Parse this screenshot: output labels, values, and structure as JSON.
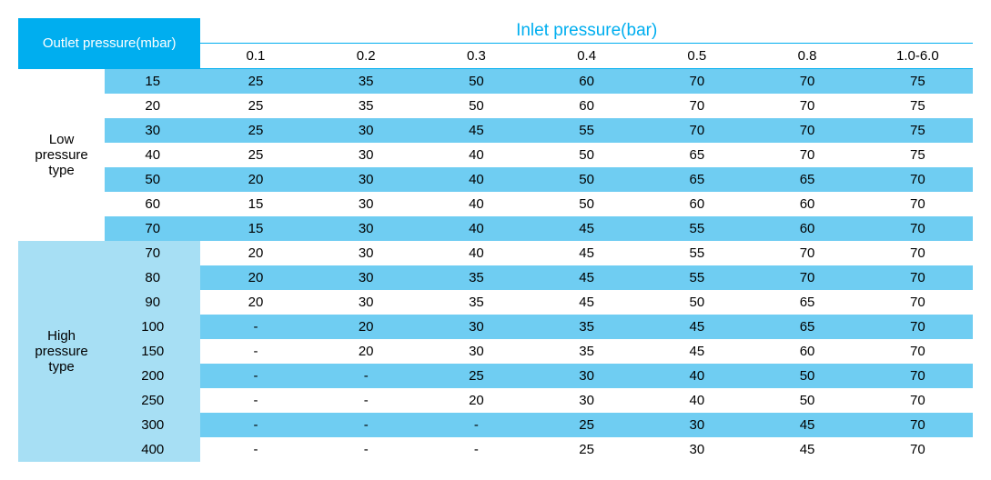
{
  "header": {
    "outlet_label": "Outlet pressure(mbar)",
    "inlet_label": "Inlet pressure(bar)"
  },
  "inlet_cols": [
    "0.1",
    "0.2",
    "0.3",
    "0.4",
    "0.5",
    "0.8",
    "1.0-6.0"
  ],
  "groups": {
    "low": {
      "label_l1": "Low",
      "label_l2": "pressure",
      "label_l3": "type"
    },
    "high": {
      "label_l1": "High",
      "label_l2": "pressure",
      "label_l3": "type"
    }
  },
  "rows": [
    {
      "group": "low",
      "mbar": "15",
      "v": [
        "25",
        "35",
        "50",
        "60",
        "70",
        "70",
        "75"
      ]
    },
    {
      "group": "low",
      "mbar": "20",
      "v": [
        "25",
        "35",
        "50",
        "60",
        "70",
        "70",
        "75"
      ]
    },
    {
      "group": "low",
      "mbar": "30",
      "v": [
        "25",
        "30",
        "45",
        "55",
        "70",
        "70",
        "75"
      ]
    },
    {
      "group": "low",
      "mbar": "40",
      "v": [
        "25",
        "30",
        "40",
        "50",
        "65",
        "70",
        "75"
      ]
    },
    {
      "group": "low",
      "mbar": "50",
      "v": [
        "20",
        "30",
        "40",
        "50",
        "65",
        "65",
        "70"
      ]
    },
    {
      "group": "low",
      "mbar": "60",
      "v": [
        "15",
        "30",
        "40",
        "50",
        "60",
        "60",
        "70"
      ]
    },
    {
      "group": "low",
      "mbar": "70",
      "v": [
        "15",
        "30",
        "40",
        "45",
        "55",
        "60",
        "70"
      ]
    },
    {
      "group": "high",
      "mbar": "70",
      "v": [
        "20",
        "30",
        "40",
        "45",
        "55",
        "70",
        "70"
      ]
    },
    {
      "group": "high",
      "mbar": "80",
      "v": [
        "20",
        "30",
        "35",
        "45",
        "55",
        "70",
        "70"
      ]
    },
    {
      "group": "high",
      "mbar": "90",
      "v": [
        "20",
        "30",
        "35",
        "45",
        "50",
        "65",
        "70"
      ]
    },
    {
      "group": "high",
      "mbar": "100",
      "v": [
        "-",
        "20",
        "30",
        "35",
        "45",
        "65",
        "70"
      ]
    },
    {
      "group": "high",
      "mbar": "150",
      "v": [
        "-",
        "20",
        "30",
        "35",
        "45",
        "60",
        "70"
      ]
    },
    {
      "group": "high",
      "mbar": "200",
      "v": [
        "-",
        "-",
        "25",
        "30",
        "40",
        "50",
        "70"
      ]
    },
    {
      "group": "high",
      "mbar": "250",
      "v": [
        "-",
        "-",
        "20",
        "30",
        "40",
        "50",
        "70"
      ]
    },
    {
      "group": "high",
      "mbar": "300",
      "v": [
        "-",
        "-",
        "-",
        "25",
        "30",
        "45",
        "70"
      ]
    },
    {
      "group": "high",
      "mbar": "400",
      "v": [
        "-",
        "-",
        "-",
        "25",
        "30",
        "45",
        "70"
      ]
    }
  ],
  "colors": {
    "header_bg": "#00aeef",
    "header_fg": "#ffffff",
    "inlet_fg": "#00aeef",
    "stripe_dark": "#6fcdf2",
    "stripe_light": "#ffffff",
    "group_bg": "#a7dff4",
    "text": "#000000"
  },
  "col_widths": {
    "group": 95,
    "mbar": 105,
    "data": 121
  },
  "font_sizes": {
    "body": 15,
    "inlet_header": 19
  }
}
